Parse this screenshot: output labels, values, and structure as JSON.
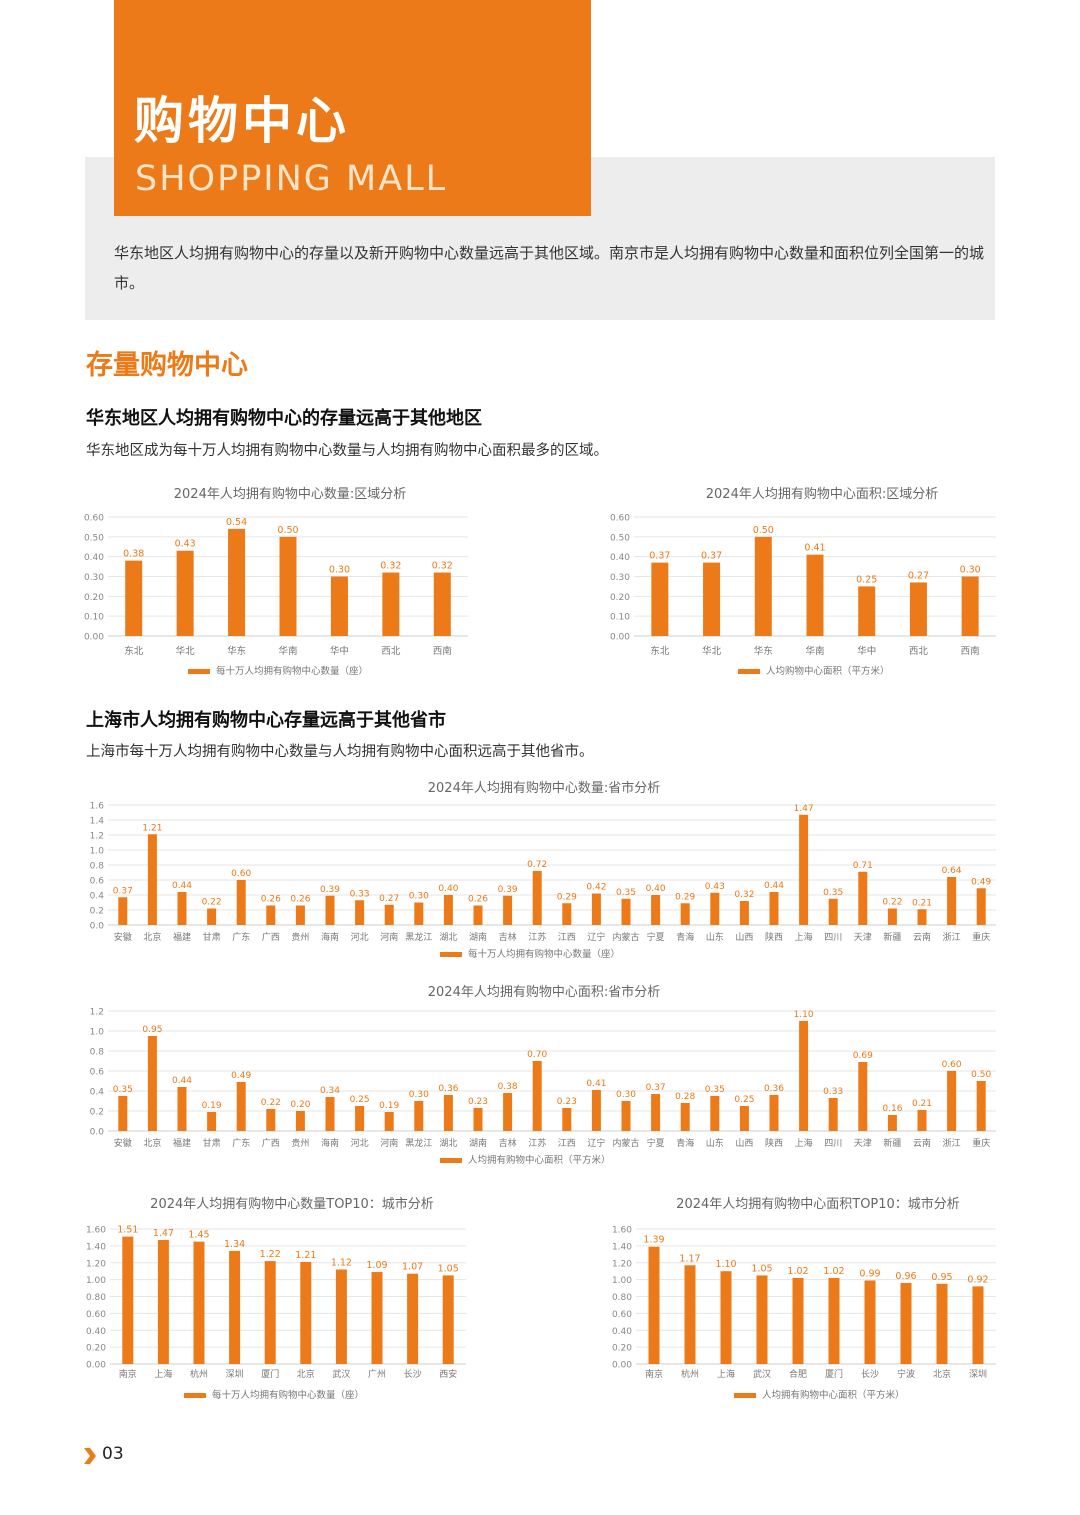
{
  "header": {
    "title_cn": "购物中心",
    "title_en": "SHOPPING MALL",
    "intro": "华东地区人均拥有购物中心的存量以及新开购物中心数量远高于其他区域。南京市是人均拥有购物中心数量和面积位列全国第一的城市。"
  },
  "section": {
    "title": "存量购物中心"
  },
  "block1": {
    "heading": "华东地区人均拥有购物中心的存量远高于其他地区",
    "desc": "华东地区成为每十万人均拥有购物中心数量与人均拥有购物中心面积最多的区域。"
  },
  "block2": {
    "heading": "上海市人均拥有购物中心存量远高于其他省市",
    "desc": "上海市每十万人均拥有购物中心数量与人均拥有购物中心面积远高于其他省市。"
  },
  "footer": {
    "page_number": "03"
  },
  "colors": {
    "accent": "#ec7a18",
    "band": "#ededed"
  },
  "chart_data": [
    {
      "type": "bar",
      "title": "2024年人均拥有购物中心数量:区域分析",
      "categories": [
        "东北",
        "华北",
        "华东",
        "华南",
        "华中",
        "西北",
        "西南"
      ],
      "series": [
        {
          "name": "每十万人均拥有购物中心数量（座）",
          "values": [
            0.38,
            0.43,
            0.54,
            0.5,
            0.3,
            0.32,
            0.32
          ]
        }
      ],
      "ylim": [
        0,
        0.6
      ],
      "yticks": [
        "0.00",
        "0.10",
        "0.20",
        "0.30",
        "0.40",
        "0.50",
        "0.60"
      ],
      "legend": "bottom"
    },
    {
      "type": "bar",
      "title": "2024年人均拥有购物中心面积:区域分析",
      "categories": [
        "东北",
        "华北",
        "华东",
        "华南",
        "华中",
        "西北",
        "西南"
      ],
      "series": [
        {
          "name": "人均购物中心面积（平方米）",
          "values": [
            0.37,
            0.37,
            0.5,
            0.41,
            0.25,
            0.27,
            0.3
          ]
        }
      ],
      "ylim": [
        0,
        0.6
      ],
      "yticks": [
        "0.00",
        "0.10",
        "0.20",
        "0.30",
        "0.40",
        "0.50",
        "0.60"
      ],
      "legend": "bottom"
    },
    {
      "type": "bar",
      "title": "2024年人均拥有购物中心数量:省市分析",
      "categories": [
        "安徽",
        "北京",
        "福建",
        "甘肃",
        "广东",
        "广西",
        "贵州",
        "海南",
        "河北",
        "河南",
        "黑龙江",
        "湖北",
        "湖南",
        "吉林",
        "江苏",
        "江西",
        "辽宁",
        "内蒙古",
        "宁夏",
        "青海",
        "山东",
        "山西",
        "陕西",
        "上海",
        "四川",
        "天津",
        "新疆",
        "云南",
        "浙江",
        "重庆"
      ],
      "series": [
        {
          "name": "每十万人均拥有购物中心数量（座）",
          "values": [
            0.37,
            1.21,
            0.44,
            0.22,
            0.6,
            0.26,
            0.26,
            0.39,
            0.33,
            0.27,
            0.3,
            0.4,
            0.26,
            0.39,
            0.72,
            0.29,
            0.42,
            0.35,
            0.4,
            0.29,
            0.43,
            0.32,
            0.44,
            1.47,
            0.35,
            0.71,
            0.22,
            0.21,
            0.64,
            0.49
          ]
        }
      ],
      "ylim": [
        0,
        1.6
      ],
      "yticks": [
        "0.0",
        "0.2",
        "0.4",
        "0.6",
        "0.8",
        "1.0",
        "1.2",
        "1.4",
        "1.6"
      ],
      "legend": "bottom"
    },
    {
      "type": "bar",
      "title": "2024年人均拥有购物中心面积:省市分析",
      "categories": [
        "安徽",
        "北京",
        "福建",
        "甘肃",
        "广东",
        "广西",
        "贵州",
        "海南",
        "河北",
        "河南",
        "黑龙江",
        "湖北",
        "湖南",
        "吉林",
        "江苏",
        "江西",
        "辽宁",
        "内蒙古",
        "宁夏",
        "青海",
        "山东",
        "山西",
        "陕西",
        "上海",
        "四川",
        "天津",
        "新疆",
        "云南",
        "浙江",
        "重庆"
      ],
      "series": [
        {
          "name": "人均拥有购物中心面积（平方米）",
          "values": [
            0.35,
            0.95,
            0.44,
            0.19,
            0.49,
            0.22,
            0.2,
            0.34,
            0.25,
            0.19,
            0.3,
            0.36,
            0.23,
            0.38,
            0.7,
            0.23,
            0.41,
            0.3,
            0.37,
            0.28,
            0.35,
            0.25,
            0.36,
            1.1,
            0.33,
            0.69,
            0.16,
            0.21,
            0.6,
            0.5
          ]
        }
      ],
      "ylim": [
        0,
        1.2
      ],
      "yticks": [
        "0.0",
        "0.2",
        "0.4",
        "0.6",
        "0.8",
        "1.0",
        "1.2"
      ],
      "legend": "bottom"
    },
    {
      "type": "bar",
      "title": "2024年人均拥有购物中心数量TOP10：城市分析",
      "categories": [
        "南京",
        "上海",
        "杭州",
        "深圳",
        "厦门",
        "北京",
        "武汉",
        "广州",
        "长沙",
        "西安"
      ],
      "series": [
        {
          "name": "每十万人均拥有购物中心数量（座）",
          "values": [
            1.51,
            1.47,
            1.45,
            1.34,
            1.22,
            1.21,
            1.12,
            1.09,
            1.07,
            1.05
          ]
        }
      ],
      "ylim": [
        0,
        1.6
      ],
      "yticks": [
        "0.00",
        "0.20",
        "0.40",
        "0.60",
        "0.80",
        "1.00",
        "1.20",
        "1.40",
        "1.60"
      ],
      "legend": "bottom"
    },
    {
      "type": "bar",
      "title": "2024年人均拥有购物中心面积TOP10：城市分析",
      "categories": [
        "南京",
        "杭州",
        "上海",
        "武汉",
        "合肥",
        "厦门",
        "长沙",
        "宁波",
        "北京",
        "深圳"
      ],
      "series": [
        {
          "name": "人均拥有购物中心面积（平方米）",
          "values": [
            1.39,
            1.17,
            1.1,
            1.05,
            1.02,
            1.02,
            0.99,
            0.96,
            0.95,
            0.92
          ]
        }
      ],
      "ylim": [
        0,
        1.6
      ],
      "yticks": [
        "0.00",
        "0.20",
        "0.40",
        "0.60",
        "0.80",
        "1.00",
        "1.20",
        "1.40",
        "1.60"
      ],
      "legend": "bottom"
    }
  ]
}
